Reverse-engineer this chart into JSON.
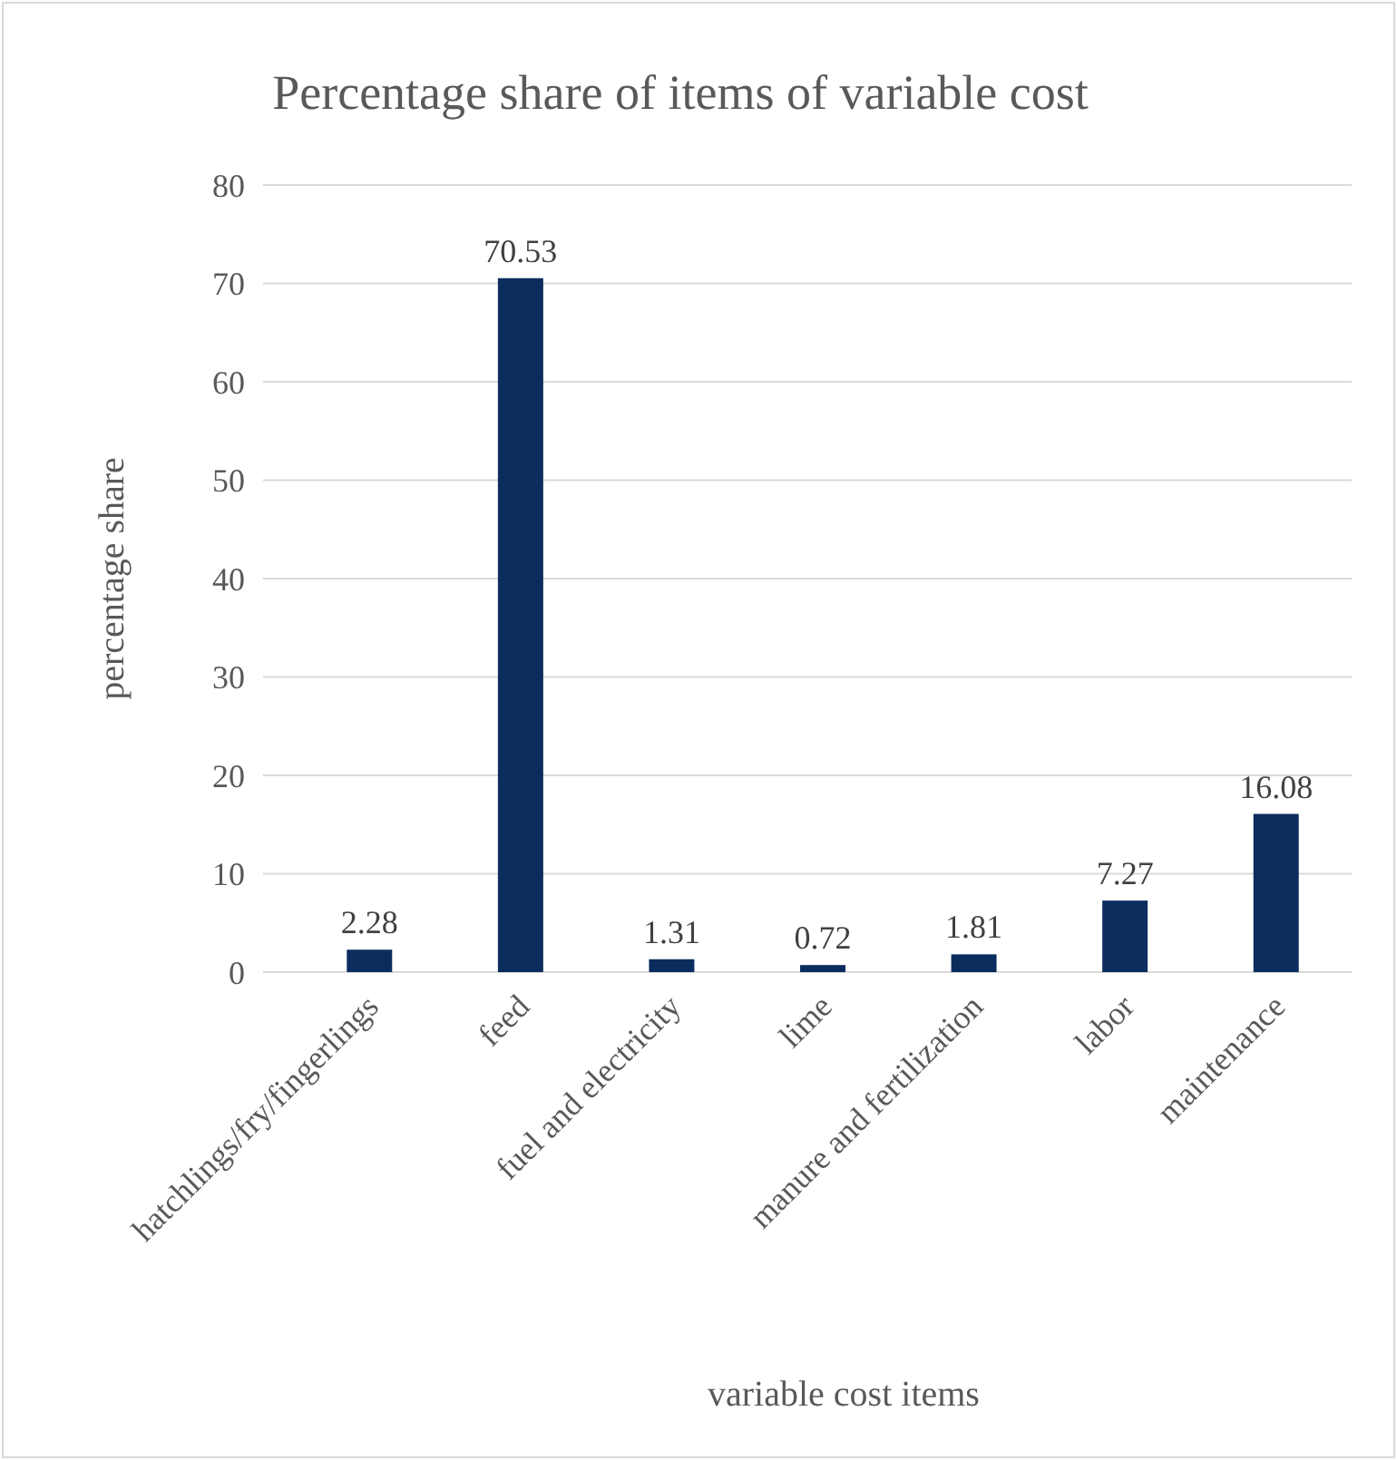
{
  "chart_data": {
    "type": "bar",
    "title": "Percentage share of items of variable cost",
    "xlabel": "variable cost items",
    "ylabel": "percentage share",
    "categories": [
      "hatchlings/fry/fingerlings",
      "feed",
      "fuel and electricity",
      "lime",
      "manure and fertilization",
      "labor",
      "maintenance"
    ],
    "values": [
      2.28,
      70.53,
      1.31,
      0.72,
      1.81,
      7.27,
      16.08
    ],
    "color": "#0b2d5e",
    "ylim": [
      0,
      80
    ],
    "yticks": [
      0,
      10,
      20,
      30,
      40,
      50,
      60,
      70,
      80
    ],
    "grid": "y",
    "data_labels": true
  }
}
